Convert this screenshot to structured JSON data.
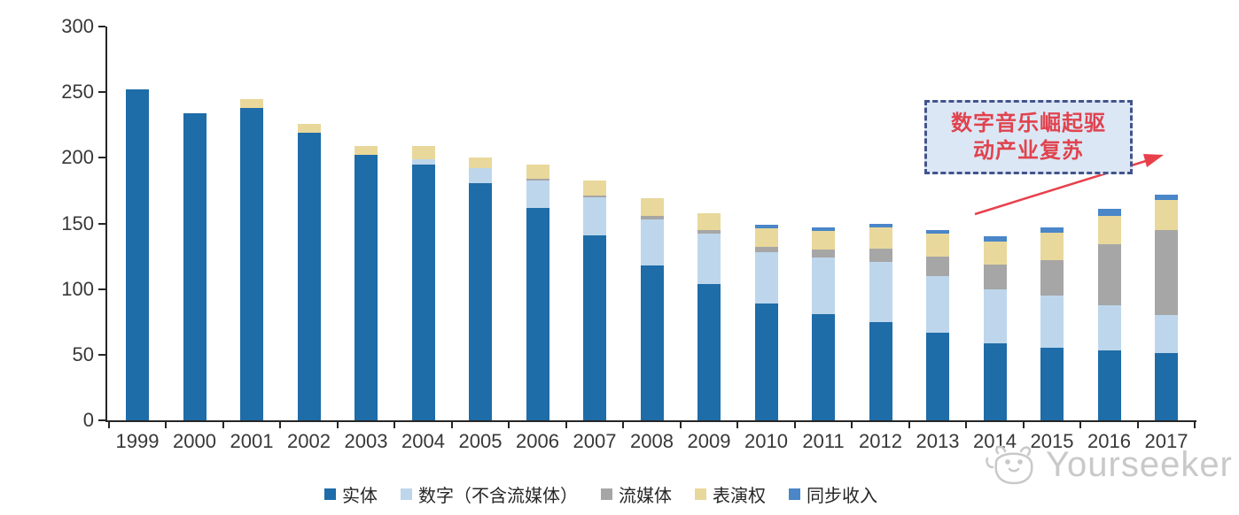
{
  "axis": {
    "y_ticks": [
      "0",
      "50",
      "100",
      "150",
      "200",
      "250",
      "300"
    ],
    "y_max": 300
  },
  "chart_data": {
    "type": "bar",
    "stacked": true,
    "title": "",
    "xlabel": "",
    "ylabel": "",
    "ylim": [
      0,
      300
    ],
    "grid": false,
    "legend_position": "bottom",
    "categories": [
      "1999",
      "2000",
      "2001",
      "2002",
      "2003",
      "2004",
      "2005",
      "2006",
      "2007",
      "2008",
      "2009",
      "2010",
      "2011",
      "2012",
      "2013",
      "2014",
      "2015",
      "2016",
      "2017"
    ],
    "series": [
      {
        "key": "physical",
        "name": "实体",
        "color": "#1E6CA8",
        "values": [
          252,
          234,
          238,
          219,
          202,
          195,
          181,
          162,
          141,
          118,
          104,
          89,
          81,
          75,
          67,
          59,
          55,
          53,
          51
        ]
      },
      {
        "key": "digital-ex-streaming",
        "name": "数字（不含流媒体）",
        "color": "#BDD6EC",
        "values": [
          0,
          0,
          0,
          0,
          0,
          4,
          11,
          21,
          29,
          35,
          38,
          39,
          43,
          46,
          43,
          41,
          40,
          35,
          29
        ]
      },
      {
        "key": "streaming",
        "name": "流媒体",
        "color": "#A6A6A6",
        "values": [
          0,
          0,
          0,
          0,
          0,
          0,
          0,
          1,
          1,
          3,
          3,
          4,
          6,
          10,
          15,
          19,
          27,
          46,
          65
        ]
      },
      {
        "key": "performance-rights",
        "name": "表演权",
        "color": "#E9D89B",
        "values": [
          0,
          0,
          7,
          7,
          7,
          10,
          8,
          11,
          12,
          13,
          13,
          14,
          14,
          16,
          17,
          17,
          21,
          22,
          23
        ]
      },
      {
        "key": "sync",
        "name": "同步收入",
        "color": "#4A86C8",
        "values": [
          0,
          0,
          0,
          0,
          0,
          0,
          0,
          0,
          0,
          0,
          0,
          3,
          3,
          3,
          3,
          4,
          4,
          5,
          4
        ]
      }
    ]
  },
  "annotation": {
    "line1": "数字音乐崛起驱",
    "line2": "动产业复苏",
    "border_color": "#43548C",
    "background_color": "#DCE7F5",
    "text_color": "#E0434E",
    "arrow_color": "#E8404B"
  },
  "watermark": {
    "text": "Yourseeker",
    "color": "#c9c9c9"
  }
}
